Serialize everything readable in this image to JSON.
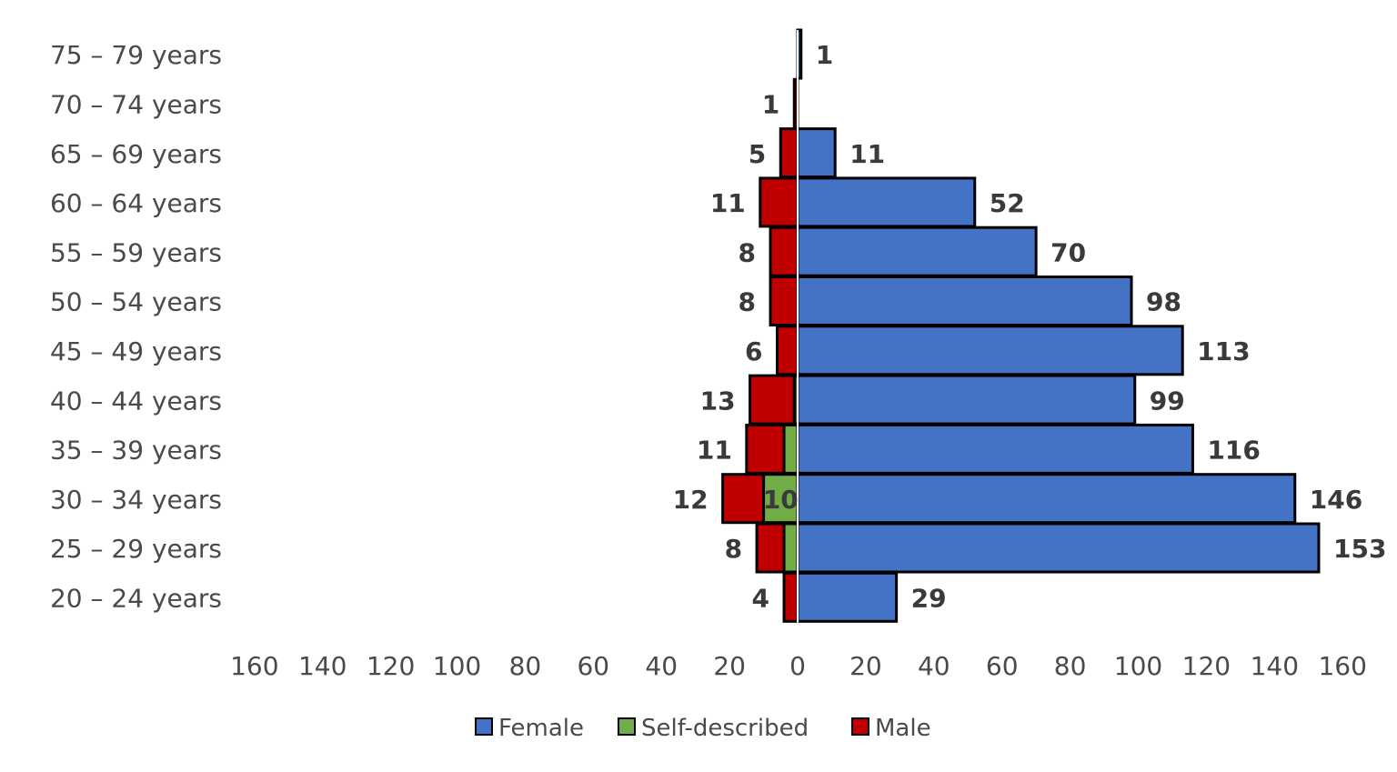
{
  "chart_data": {
    "type": "bar",
    "orientation": "horizontal",
    "layout": "population-pyramid",
    "categories": [
      "20 – 24 years",
      "25 – 29 years",
      "30 – 34 years",
      "35 – 39 years",
      "40 – 44 years",
      "45 – 49 years",
      "50 – 54 years",
      "55 – 59 years",
      "60 – 64 years",
      "65 – 69 years",
      "70 – 74 years",
      "75 – 79 years"
    ],
    "series": [
      {
        "name": "Female",
        "side": "right",
        "color": "#4472C4",
        "values": [
          29,
          153,
          146,
          116,
          99,
          113,
          98,
          70,
          52,
          11,
          0,
          1
        ],
        "labels": [
          "29",
          "153",
          "146",
          "116",
          "99",
          "113",
          "98",
          "70",
          "52",
          "11",
          "",
          "1"
        ]
      },
      {
        "name": "Self-described",
        "side": "left",
        "color": "#70AD47",
        "values": [
          0,
          4,
          10,
          4,
          1,
          0,
          0,
          0,
          0,
          0,
          0,
          0
        ],
        "labels": [
          "",
          "",
          "10",
          "",
          "",
          "",
          "",
          "",
          "",
          "",
          "",
          ""
        ]
      },
      {
        "name": "Male",
        "side": "left",
        "color": "#C00000",
        "values": [
          4,
          8,
          12,
          11,
          13,
          6,
          8,
          8,
          11,
          5,
          1,
          0
        ],
        "labels": [
          "4",
          "8",
          "12",
          "11",
          "13",
          "6",
          "8",
          "8",
          "11",
          "5",
          "1",
          ""
        ]
      }
    ],
    "xlim": [
      -160,
      160
    ],
    "xticks": [
      "160",
      "140",
      "120",
      "100",
      "80",
      "60",
      "40",
      "20",
      "0",
      "20",
      "40",
      "60",
      "80",
      "100",
      "120",
      "140",
      "160"
    ],
    "grid": false,
    "legend": "bottom",
    "title": "",
    "xlabel": "",
    "ylabel": ""
  }
}
